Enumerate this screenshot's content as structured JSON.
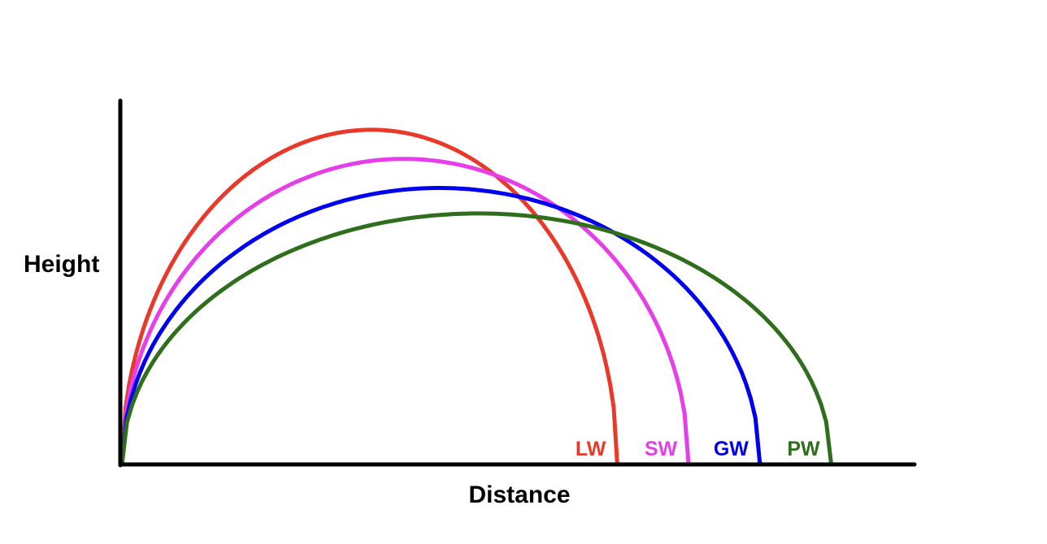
{
  "chart_data": {
    "type": "line",
    "title": "",
    "xlabel": "Distance",
    "ylabel": "Height",
    "xlim": [
      0,
      100
    ],
    "ylim": [
      0,
      100
    ],
    "ticks_shown": false,
    "grid": false,
    "series_labels_placement": "at landing point, bottom",
    "series": [
      {
        "name": "LW",
        "color": "#e8392a",
        "landing": 62.5,
        "apex_x": 31.5,
        "apex_y": 92
      },
      {
        "name": "SW",
        "color": "#e63ee8",
        "landing": 71.5,
        "apex_x": 35.5,
        "apex_y": 84
      },
      {
        "name": "GW",
        "color": "#0000ee",
        "landing": 80.5,
        "apex_x": 40,
        "apex_y": 76
      },
      {
        "name": "PW",
        "color": "#2f6e1c",
        "landing": 89.5,
        "apex_x": 45,
        "apex_y": 69
      }
    ]
  }
}
